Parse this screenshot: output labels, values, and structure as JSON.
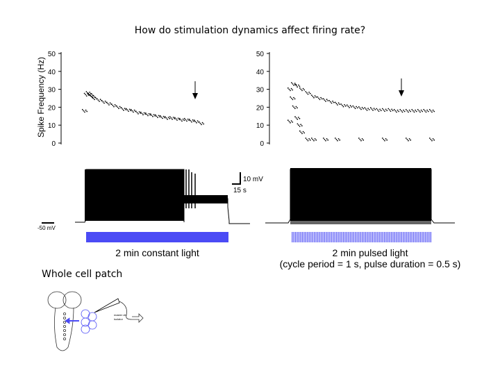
{
  "slide": {
    "title": "How do stimulation dynamics affect firing rate?",
    "section_label": "Whole cell patch"
  },
  "chart_data": [
    {
      "type": "scatter",
      "panel": "left",
      "title": "",
      "xlabel": "",
      "ylabel": "Spike Frequency (Hz)",
      "ylim": [
        0,
        50
      ],
      "yticks": [
        0,
        10,
        20,
        30,
        40,
        50
      ],
      "x_units": "seconds (approx.)",
      "series": [
        {
          "x": [
            0,
            2,
            4,
            6,
            8,
            10,
            15,
            20,
            25,
            30,
            35,
            40,
            45,
            50,
            55,
            60,
            65,
            70,
            75,
            80,
            85,
            90,
            95,
            100,
            105,
            110,
            115,
            120
          ],
          "y": [
            18,
            27,
            28,
            27,
            26,
            25,
            24,
            23,
            22,
            21,
            20,
            19,
            18.5,
            18,
            17,
            16.5,
            16,
            15.5,
            15,
            14.5,
            14,
            14,
            13.5,
            13,
            13,
            12.5,
            12,
            11
          ]
        }
      ],
      "annotation": "arrow"
    },
    {
      "type": "scatter",
      "panel": "right",
      "title": "",
      "xlabel": "",
      "ylabel": "",
      "ylim": [
        0,
        50
      ],
      "yticks": [
        0,
        10,
        20,
        30,
        40,
        50
      ],
      "x_units": "seconds (approx.)",
      "series": [
        {
          "x": [
            0,
            3,
            6,
            10,
            15,
            20,
            25,
            30,
            35,
            40,
            45,
            50,
            55,
            60,
            65,
            70,
            75,
            80,
            85,
            90,
            95,
            100,
            105,
            110,
            115,
            120
          ],
          "y": [
            30,
            33,
            32,
            30,
            28,
            26,
            25,
            24,
            23,
            22,
            21,
            20.5,
            20,
            19.5,
            19,
            19,
            18.5,
            18.5,
            18.5,
            18,
            18,
            18,
            18,
            18,
            18,
            18
          ]
        },
        {
          "x": [
            0,
            2,
            4,
            6,
            8,
            10,
            15,
            20,
            30,
            40,
            60,
            80,
            100,
            120
          ],
          "y": [
            12,
            25,
            20,
            14,
            10,
            6,
            2,
            2,
            2,
            2,
            2,
            2,
            2,
            2
          ]
        }
      ],
      "annotation": "arrow"
    }
  ],
  "traces": {
    "scale_bar_v": "10 mV",
    "scale_bar_h": "15 s",
    "baseline_label": "-50 mV"
  },
  "stimulus": {
    "left_caption": "2 min constant light",
    "right_caption": "2 min pulsed light",
    "right_subcaption": "(cycle period = 1 s, pulse duration = 0.5 s)",
    "pulse_count": 120,
    "stim_color": "#4B4BF5"
  },
  "schematic": {
    "text_line1": "master clk",
    "text_line2": "isolator"
  }
}
